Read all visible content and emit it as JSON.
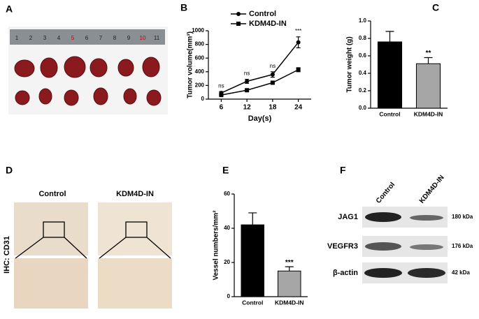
{
  "panels": {
    "labels": [
      "A",
      "B",
      "C",
      "D",
      "E",
      "F"
    ]
  },
  "panel_a": {
    "ruler_labels": [
      "1",
      "2",
      "3",
      "4",
      "5",
      "6",
      "7",
      "8",
      "9",
      "10",
      "11"
    ]
  },
  "panel_d": {
    "columns": [
      "Control",
      "KDM4D-IN"
    ],
    "row_label": "IHC: CD31"
  },
  "panel_f": {
    "columns": [
      "Control",
      "KDM4D-IN"
    ],
    "rows": [
      {
        "label": "JAG1",
        "size": "180 kDa"
      },
      {
        "label": "VEGFR3",
        "size": "176 kDa"
      },
      {
        "label": "β-actin",
        "size": "42 kDa"
      }
    ]
  },
  "chart_data": [
    {
      "type": "line",
      "ylabel": "Tumor volume(mm³)",
      "xlabel": "Day(s)",
      "x": [
        6,
        12,
        18,
        24
      ],
      "xlim": [
        3,
        27
      ],
      "xticks": [
        6,
        12,
        18,
        24
      ],
      "ylim": [
        0,
        1000
      ],
      "yticks": [
        0,
        200,
        400,
        600,
        800,
        1000
      ],
      "series": [
        {
          "name": "Control",
          "color": "#000000",
          "marker": "circle",
          "values": [
            90,
            260,
            360,
            830
          ],
          "errors": [
            20,
            30,
            40,
            80
          ]
        },
        {
          "name": "KDM4D-IN",
          "color": "#000000",
          "marker": "square",
          "values": [
            60,
            130,
            240,
            430
          ],
          "errors": [
            10,
            15,
            20,
            30
          ]
        }
      ],
      "annotations": [
        "ns",
        "ns",
        "ns",
        "***"
      ]
    },
    {
      "type": "bar",
      "ylabel": "Tumor weight (g)",
      "categories": [
        "Control",
        "KDM4D-IN"
      ],
      "values": [
        0.76,
        0.51
      ],
      "errors": [
        0.12,
        0.07
      ],
      "colors": [
        "#000000",
        "#a6a6a6"
      ],
      "ylim": [
        0,
        1
      ],
      "yticks": [
        {
          "value": 0,
          "label": "0.0"
        },
        0.2,
        0.4,
        0.6,
        0.8,
        {
          "value": 1,
          "label": "1.0"
        }
      ],
      "annotations": [
        null,
        "**"
      ]
    },
    {
      "type": "bar",
      "ylabel": "Vessel numbers/mm²",
      "categories": [
        "Control",
        "KDM4D-IN"
      ],
      "values": [
        42,
        15
      ],
      "errors": [
        7,
        2.5
      ],
      "colors": [
        "#000000",
        "#a6a6a6"
      ],
      "ylim": [
        0,
        60
      ],
      "yticks": [
        0,
        20,
        40,
        60
      ],
      "annotations": [
        null,
        "***"
      ]
    }
  ]
}
